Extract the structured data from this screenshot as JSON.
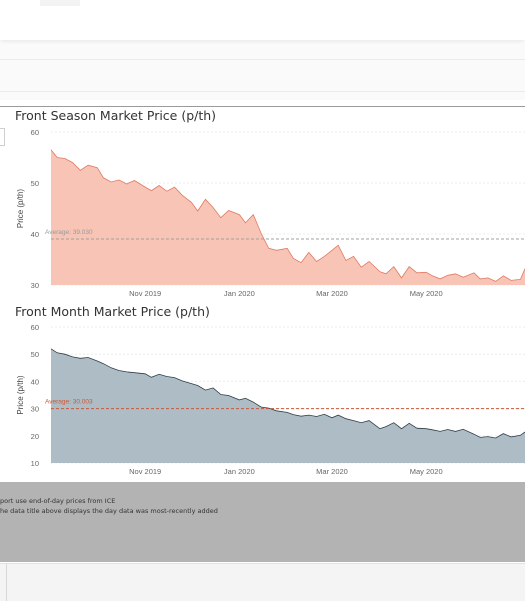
{
  "chart_data": [
    {
      "type": "area",
      "title": "Front Season Market Price (p/th)",
      "ylabel": "Price (p/th)",
      "ylim": [
        30,
        60
      ],
      "yticks": [
        30,
        40,
        50,
        60
      ],
      "xlim": [
        "2019-09-01",
        "2020-07-04"
      ],
      "xticks": [
        {
          "date": "2019-11-01",
          "label": "Nov 2019"
        },
        {
          "date": "2020-01-01",
          "label": "Jan 2020"
        },
        {
          "date": "2020-03-01",
          "label": "Mar 2020"
        },
        {
          "date": "2020-05-01",
          "label": "May 2020"
        }
      ],
      "average": {
        "label": "Average: 39.030",
        "value": 39.03
      },
      "colors": {
        "fill": "#f7c4b6",
        "line": "#e07a62",
        "avg": "#a0a0a0",
        "avg_text": "#9a9a9a"
      },
      "x": [
        "2019-09-01",
        "2019-09-05",
        "2019-09-10",
        "2019-09-15",
        "2019-09-20",
        "2019-09-25",
        "2019-10-01",
        "2019-10-05",
        "2019-10-10",
        "2019-10-15",
        "2019-10-20",
        "2019-10-25",
        "2019-11-01",
        "2019-11-05",
        "2019-11-10",
        "2019-11-15",
        "2019-11-20",
        "2019-11-25",
        "2019-12-01",
        "2019-12-05",
        "2019-12-10",
        "2019-12-15",
        "2019-12-20",
        "2019-12-25",
        "2020-01-01",
        "2020-01-05",
        "2020-01-10",
        "2020-01-15",
        "2020-01-20",
        "2020-01-25",
        "2020-02-01",
        "2020-02-05",
        "2020-02-10",
        "2020-02-15",
        "2020-02-20",
        "2020-02-25",
        "2020-03-01",
        "2020-03-05",
        "2020-03-10",
        "2020-03-15",
        "2020-03-20",
        "2020-03-25",
        "2020-04-01",
        "2020-04-05",
        "2020-04-10",
        "2020-04-15",
        "2020-04-20",
        "2020-04-25",
        "2020-05-01",
        "2020-05-05",
        "2020-05-10",
        "2020-05-15",
        "2020-05-20",
        "2020-05-25",
        "2020-06-01",
        "2020-06-05",
        "2020-06-10",
        "2020-06-15",
        "2020-06-20",
        "2020-06-25",
        "2020-07-01",
        "2020-07-04"
      ],
      "values": [
        56.5,
        55,
        54.8,
        54,
        52.5,
        53.5,
        53,
        51,
        50.2,
        50.6,
        49.8,
        50.5,
        49.2,
        48.5,
        49.5,
        48.4,
        49.2,
        47.6,
        46.2,
        44.5,
        46.8,
        45.2,
        43.2,
        44.6,
        43.8,
        42.2,
        43.8,
        40.2,
        37.2,
        36.8,
        37.2,
        35.2,
        34.4,
        36.4,
        34.6,
        35.6,
        36.8,
        37.8,
        34.8,
        35.6,
        33.5,
        34.6,
        32.6,
        32.2,
        33.6,
        31.4,
        33.6,
        32.4,
        32.5,
        31.8,
        31.2,
        31.9,
        32.2,
        31.5,
        32.4,
        31.2,
        31.4,
        30.7,
        31.8,
        30.9,
        31.1,
        33.2
      ]
    },
    {
      "type": "area",
      "title": "Front Month Market Price (p/th)",
      "ylabel": "Price (p/th)",
      "ylim": [
        10,
        60
      ],
      "yticks": [
        10,
        20,
        30,
        40,
        50,
        60
      ],
      "xlim": [
        "2019-09-01",
        "2020-07-04"
      ],
      "xticks": [
        {
          "date": "2019-11-01",
          "label": "Nov 2019"
        },
        {
          "date": "2020-01-01",
          "label": "Jan 2020"
        },
        {
          "date": "2020-03-01",
          "label": "Mar 2020"
        },
        {
          "date": "2020-05-01",
          "label": "May 2020"
        }
      ],
      "average": {
        "label": "Average: 30.003",
        "value": 30.003
      },
      "colors": {
        "fill": "#aebcc5",
        "line": "#2f3f48",
        "avg": "#c65a3a",
        "avg_text": "#c65a3a"
      },
      "x": [
        "2019-09-01",
        "2019-09-05",
        "2019-09-10",
        "2019-09-15",
        "2019-09-20",
        "2019-09-25",
        "2019-10-01",
        "2019-10-05",
        "2019-10-10",
        "2019-10-15",
        "2019-10-20",
        "2019-10-25",
        "2019-11-01",
        "2019-11-05",
        "2019-11-10",
        "2019-11-15",
        "2019-11-20",
        "2019-11-25",
        "2019-12-01",
        "2019-12-05",
        "2019-12-10",
        "2019-12-15",
        "2019-12-20",
        "2019-12-25",
        "2020-01-01",
        "2020-01-05",
        "2020-01-10",
        "2020-01-15",
        "2020-01-20",
        "2020-01-25",
        "2020-02-01",
        "2020-02-05",
        "2020-02-10",
        "2020-02-15",
        "2020-02-20",
        "2020-02-25",
        "2020-03-01",
        "2020-03-05",
        "2020-03-10",
        "2020-03-15",
        "2020-03-20",
        "2020-03-25",
        "2020-04-01",
        "2020-04-05",
        "2020-04-10",
        "2020-04-15",
        "2020-04-20",
        "2020-04-25",
        "2020-05-01",
        "2020-05-05",
        "2020-05-10",
        "2020-05-15",
        "2020-05-20",
        "2020-05-25",
        "2020-06-01",
        "2020-06-05",
        "2020-06-10",
        "2020-06-15",
        "2020-06-20",
        "2020-06-25",
        "2020-07-01",
        "2020-07-04"
      ],
      "values": [
        52,
        50.5,
        50,
        49,
        48.5,
        48.8,
        47.5,
        46.5,
        45,
        44,
        43.5,
        43.2,
        42.8,
        41.5,
        42.6,
        41.8,
        41.4,
        40.2,
        39.2,
        38.5,
        36.8,
        37.6,
        35.2,
        34.8,
        33.2,
        33.8,
        32.4,
        30.6,
        30.2,
        29.2,
        28.6,
        27.8,
        27.2,
        27.6,
        27.1,
        27.9,
        26.6,
        27.6,
        26.3,
        25.6,
        24.8,
        25.6,
        22.6,
        23.4,
        24.8,
        22.6,
        24.6,
        22.8,
        22.6,
        22.2,
        21.6,
        22.3,
        21.6,
        22.4,
        20.6,
        19.4,
        19.7,
        19.2,
        20.8,
        19.6,
        20.2,
        21.4
      ]
    }
  ],
  "footer": {
    "line1": "port use end-of-day prices from ICE",
    "line2": "he data title above displays the day data was most-recently added"
  }
}
